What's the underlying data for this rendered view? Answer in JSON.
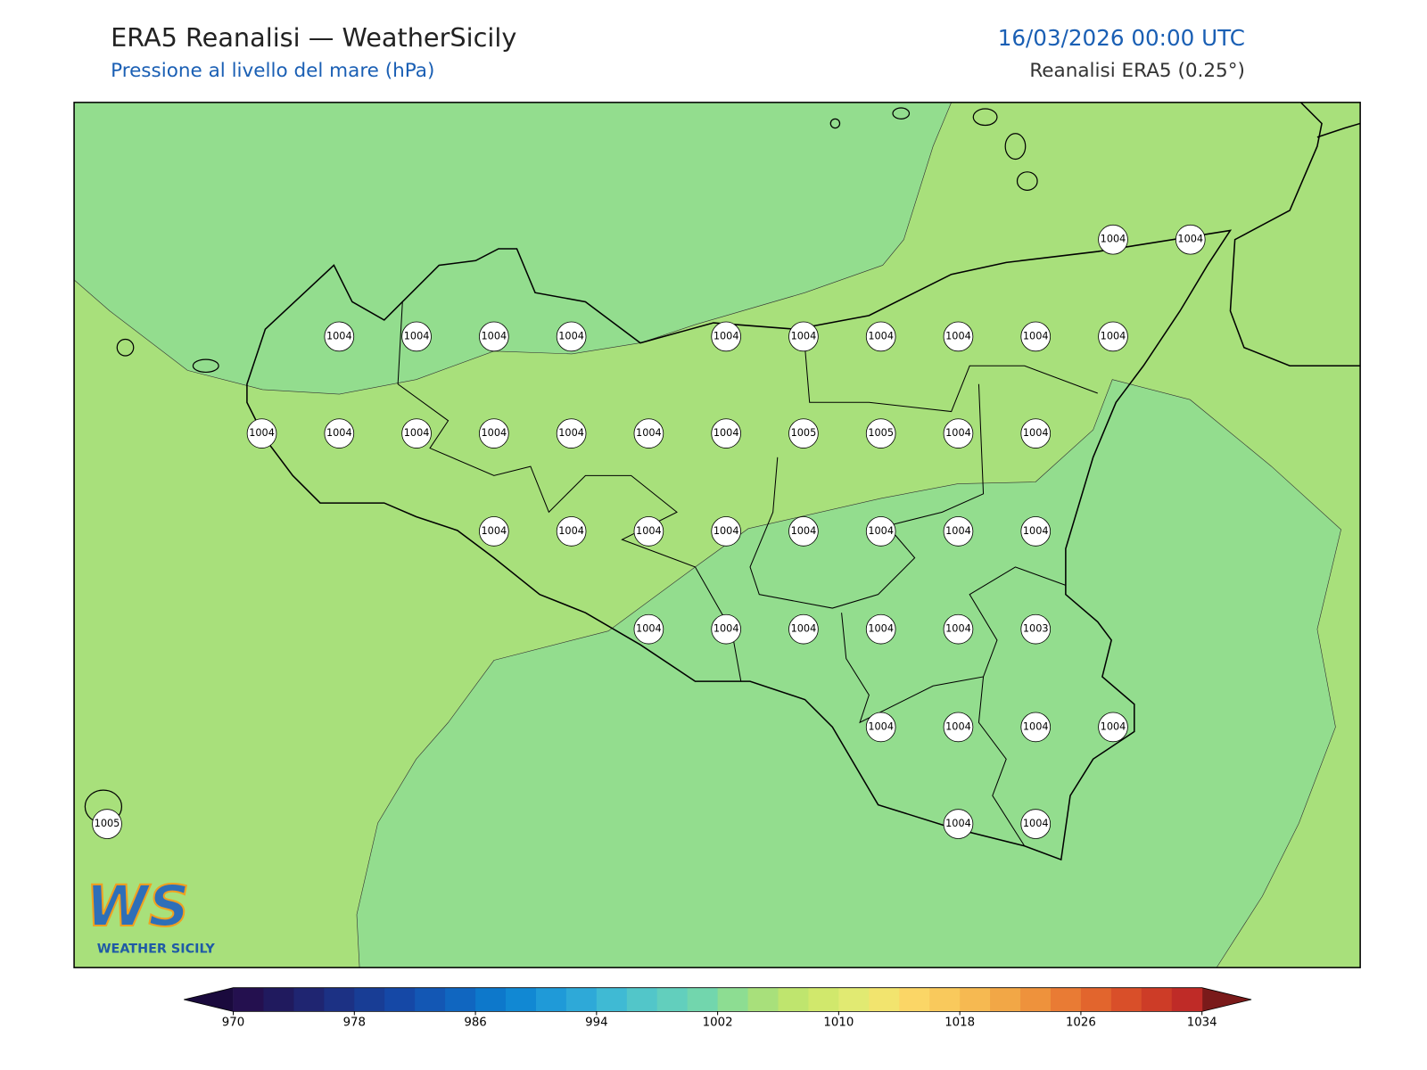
{
  "header": {
    "title": "ERA5 Reanalisi — WeatherSicily",
    "subtitle": "Pressione al livello del mare (hPa)",
    "datetime": "16/03/2026 00:00 UTC",
    "source": "Reanalisi ERA5 (0.25°)"
  },
  "map": {
    "stations": [
      [
        null,
        null,
        null,
        null,
        null,
        null,
        null,
        null,
        null,
        null,
        null,
        null,
        null,
        1004,
        1004
      ],
      [
        null,
        null,
        null,
        1004,
        1004,
        1004,
        1004,
        null,
        1004,
        1004,
        1004,
        1004,
        1004,
        1004,
        null
      ],
      [
        null,
        null,
        1004,
        1004,
        1004,
        1004,
        1004,
        1004,
        1004,
        1005,
        1005,
        1004,
        1004,
        null,
        null
      ],
      [
        null,
        null,
        null,
        null,
        null,
        1004,
        1004,
        1004,
        1004,
        1004,
        1004,
        1004,
        1004,
        null,
        null
      ],
      [
        null,
        null,
        null,
        null,
        null,
        null,
        null,
        1004,
        1004,
        1004,
        1004,
        1004,
        1003,
        null,
        null
      ],
      [
        null,
        null,
        null,
        null,
        null,
        null,
        null,
        null,
        null,
        null,
        1004,
        1004,
        1004,
        1004,
        null
      ],
      [
        1005,
        null,
        null,
        null,
        null,
        null,
        null,
        null,
        null,
        null,
        null,
        1004,
        1004,
        null,
        null
      ]
    ]
  },
  "logo": {
    "mark": "WS",
    "text": "WEATHER SICILY"
  },
  "colorbar": {
    "lim": [
      970,
      1034
    ],
    "ticks": [
      970,
      978,
      986,
      994,
      1002,
      1010,
      1018,
      1026,
      1034
    ],
    "colors": [
      "#24104f",
      "#201a5e",
      "#1f2571",
      "#1c3184",
      "#183d95",
      "#1548a6",
      "#1357b4",
      "#1066c0",
      "#0d78cb",
      "#1188d3",
      "#1f9ad8",
      "#2ea9d8",
      "#3fbad4",
      "#52c6c9",
      "#62cfbd",
      "#72d6ad",
      "#8ddd92",
      "#a8e07b",
      "#bfe56e",
      "#d1e86c",
      "#e1ea72",
      "#f2e46e",
      "#fbd666",
      "#f9c95c",
      "#f6b951",
      "#f2a746",
      "#ee923c",
      "#e97b34",
      "#e2652d",
      "#d94f29",
      "#cd3c27",
      "#bf2b27"
    ],
    "under": "#1a0a3d",
    "over": "#7a1a1a"
  }
}
